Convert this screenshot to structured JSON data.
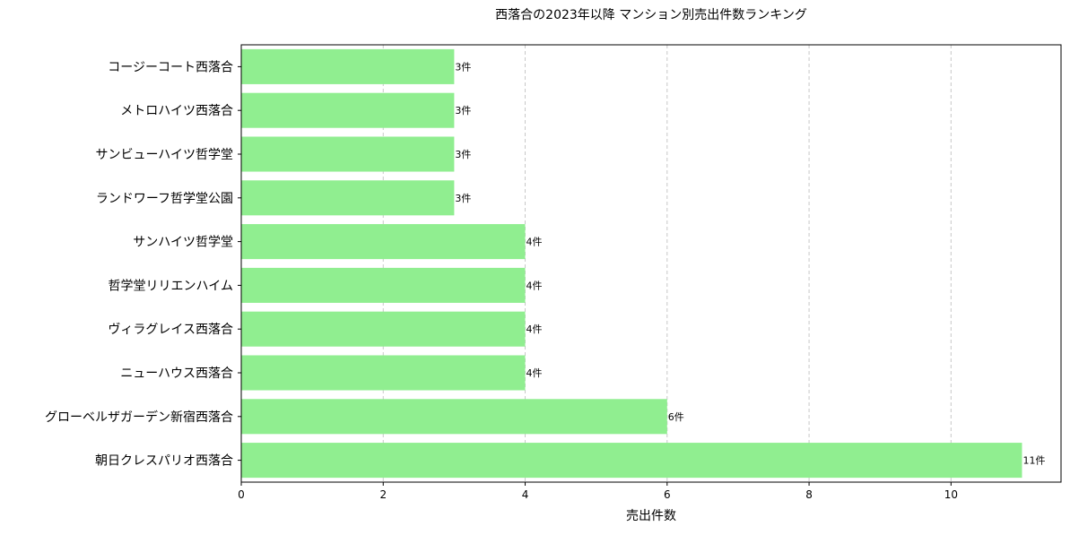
{
  "chart_data": {
    "type": "bar",
    "orientation": "horizontal",
    "title": "西落合の2023年以降 マンション別売出件数ランキング",
    "xlabel": "売出件数",
    "ylabel": "",
    "xlim": [
      0,
      11.55
    ],
    "xticks": [
      0,
      2,
      4,
      6,
      8,
      10
    ],
    "grid": "x-dashed",
    "bar_color": "#90ee90",
    "value_suffix": "件",
    "categories": [
      "コージーコート西落合",
      "メトロハイツ西落合",
      "サンビューハイツ哲学堂",
      "ランドワーフ哲学堂公園",
      "サンハイツ哲学堂",
      "哲学堂リリエンハイム",
      "ヴィラグレイス西落合",
      "ニューハウス西落合",
      "グローベルザガーデン新宿西落合",
      "朝日クレスパリオ西落合"
    ],
    "values": [
      3,
      3,
      3,
      3,
      4,
      4,
      4,
      4,
      6,
      11
    ],
    "data_labels": [
      "3件",
      "3件",
      "3件",
      "3件",
      "4件",
      "4件",
      "4件",
      "4件",
      "6件",
      "11件"
    ]
  }
}
